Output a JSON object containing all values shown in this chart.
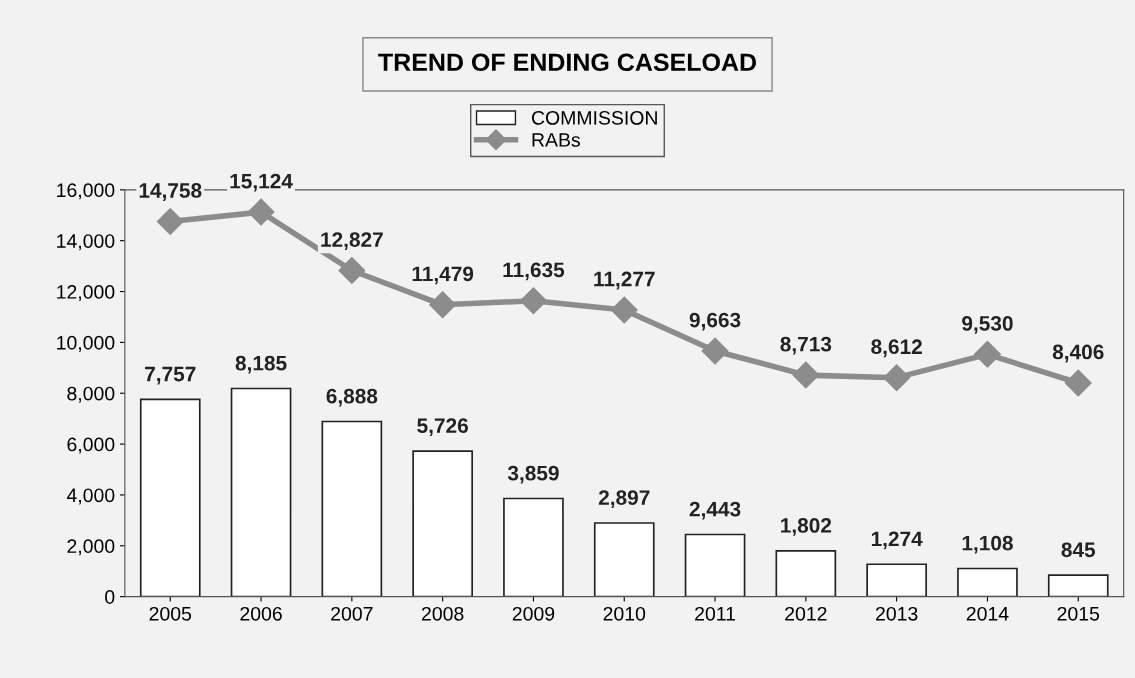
{
  "chart_data": {
    "type": "bar",
    "title": "TREND OF ENDING CASELOAD",
    "categories": [
      "2005",
      "2006",
      "2007",
      "2008",
      "2009",
      "2010",
      "2011",
      "2012",
      "2013",
      "2014",
      "2015"
    ],
    "series": [
      {
        "name": "COMMISSION",
        "color": "#ffffff",
        "values": [
          7757,
          8185,
          6888,
          5726,
          3859,
          2897,
          2443,
          1802,
          1274,
          1108,
          845
        ],
        "value_labels": [
          "7,757",
          "8,185",
          "6,888",
          "5,726",
          "3,859",
          "2,897",
          "2,443",
          "1,802",
          "1,274",
          "1,108",
          "845"
        ]
      },
      {
        "name": "RABs",
        "type": "line",
        "color": "#8c8c8c",
        "marker": "diamond",
        "values": [
          14758,
          15124,
          12827,
          11479,
          11635,
          11277,
          9663,
          8713,
          8612,
          9530,
          8406
        ],
        "value_labels": [
          "14,758",
          "15,124",
          "12,827",
          "11,479",
          "11,635",
          "11,277",
          "9,663",
          "8,713",
          "8,612",
          "9,530",
          "8,406"
        ]
      }
    ],
    "ylim": [
      0,
      16000
    ],
    "yticks": [
      {
        "value": 0,
        "label": "0"
      },
      {
        "value": 2000,
        "label": "2,000"
      },
      {
        "value": 4000,
        "label": "4,000"
      },
      {
        "value": 6000,
        "label": "6,000"
      },
      {
        "value": 8000,
        "label": "8,000"
      },
      {
        "value": 10000,
        "label": "10,000"
      },
      {
        "value": 12000,
        "label": "12,000"
      },
      {
        "value": 14000,
        "label": "14,000"
      },
      {
        "value": 16000,
        "label": "16,000"
      }
    ],
    "grid": false,
    "legend": "top"
  }
}
